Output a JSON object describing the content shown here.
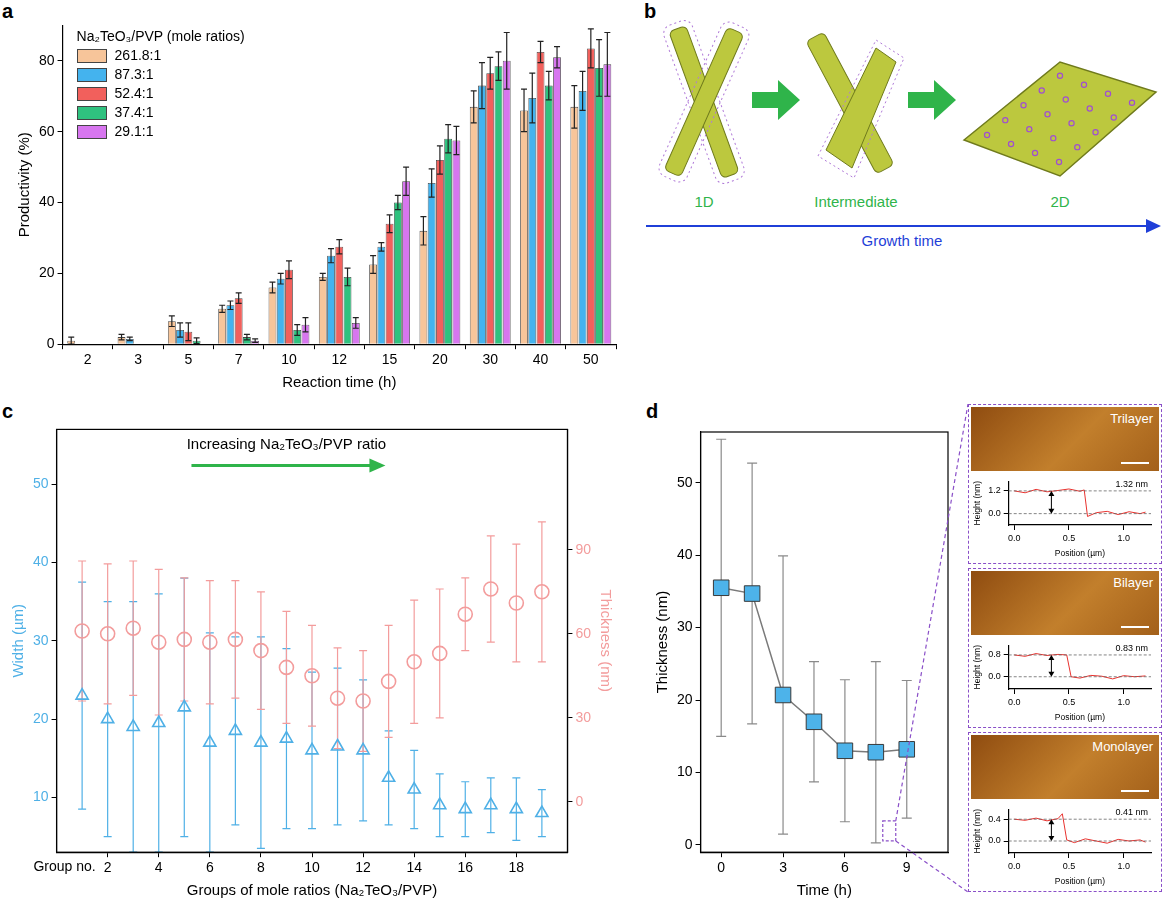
{
  "chart_data": [
    {
      "panel": "a",
      "type": "bar",
      "x_label": "Reaction time (h)",
      "y_label": "Productivity (%)",
      "categories": [
        "2",
        "3",
        "5",
        "7",
        "10",
        "12",
        "15",
        "20",
        "30",
        "40",
        "50"
      ],
      "legend_title": "Na₂TeO₃/PVP (mole ratios)",
      "legend": "top-left",
      "grid": false,
      "ylim": [
        0,
        90
      ],
      "yticks": [
        0,
        20,
        40,
        60,
        80
      ],
      "series": [
        {
          "name": "261.8:1",
          "color": "#f7c59a",
          "values": [
            1,
            2,
            6.5,
            10,
            16,
            19,
            22.5,
            32,
            67,
            66,
            67
          ],
          "errors": [
            1,
            0.8,
            1.5,
            1,
            1.5,
            1,
            2.5,
            4,
            4.5,
            6,
            6
          ]
        },
        {
          "name": "87.3:1",
          "color": "#44b3ee",
          "values": [
            0,
            1.5,
            4,
            11,
            18.5,
            25,
            27.5,
            45.5,
            73,
            69.5,
            71.5
          ],
          "errors": [
            0,
            0.5,
            2,
            1.2,
            1.5,
            2,
            1.2,
            4,
            6.5,
            7,
            5.5
          ]
        },
        {
          "name": "52.4:1",
          "color": "#f2605c",
          "values": [
            0,
            0,
            3.5,
            13,
            21,
            27.5,
            34,
            52,
            76.5,
            82.5,
            83.5
          ],
          "errors": [
            0,
            0,
            2.5,
            1.5,
            2.5,
            2,
            2.5,
            4,
            4.5,
            3,
            5.5
          ]
        },
        {
          "name": "37.4:1",
          "color": "#2fc27f",
          "values": [
            0,
            0,
            1,
            2,
            4,
            19,
            40,
            58,
            78.5,
            73,
            78
          ],
          "errors": [
            0,
            0,
            0.8,
            0.8,
            1.5,
            2.5,
            2,
            4,
            4,
            4,
            8
          ]
        },
        {
          "name": "29.1:1",
          "color": "#d776ef",
          "values": [
            0,
            0,
            0,
            1,
            5.5,
            6,
            46,
            57.5,
            80,
            81,
            79
          ],
          "errors": [
            0,
            0,
            0,
            0.5,
            2,
            1.5,
            4,
            4,
            8,
            3,
            9
          ]
        }
      ]
    },
    {
      "panel": "c",
      "type": "scatter",
      "x_label": "Groups of mole ratios (Na₂TeO₃/PVP)",
      "x_ticks_title": "Group no.",
      "annotation": "Increasing Na₂TeO₃/PVP ratio",
      "y_label": "Width (µm)",
      "y2_label": "Thickness (nm)",
      "grid": false,
      "x": [
        1,
        2,
        3,
        4,
        5,
        6,
        7,
        8,
        9,
        10,
        11,
        12,
        13,
        14,
        15,
        16,
        17,
        18,
        19
      ],
      "xlim": [
        0,
        20
      ],
      "xticks": [
        2,
        4,
        6,
        8,
        10,
        12,
        14,
        16,
        18
      ],
      "ylim": [
        3,
        57
      ],
      "yticks": [
        10,
        20,
        30,
        40,
        50
      ],
      "y2lim": [
        -18,
        133
      ],
      "y2ticks": [
        0,
        30,
        60,
        90
      ],
      "series": [
        {
          "color": "#4fb0e6",
          "marker": "triangle",
          "values": [
            23,
            20,
            19,
            19.5,
            21.5,
            17,
            18.5,
            17,
            17.5,
            16,
            16.5,
            16,
            12.5,
            11,
            9,
            8.5,
            9,
            8.5,
            8
          ],
          "errors": [
            14.5,
            15,
            16,
            16.5,
            16.5,
            14,
            12,
            13.5,
            11.5,
            10,
            10,
            9,
            6,
            5,
            4,
            3.5,
            3.5,
            4,
            3
          ]
        },
        {
          "color": "#f39c9c",
          "marker": "circle",
          "axis": "y2",
          "values": [
            61,
            60,
            62,
            57,
            58,
            57,
            58,
            54,
            48,
            45,
            37,
            36,
            43,
            50,
            53,
            67,
            76,
            71,
            75
          ],
          "errors": [
            25,
            25,
            24,
            26,
            22,
            22,
            21,
            21,
            20,
            18,
            18,
            18,
            20,
            22,
            23,
            13,
            19,
            21,
            25
          ]
        }
      ]
    },
    {
      "panel": "d",
      "type": "line",
      "x_label": "Time (h)",
      "y_label": "Thickness (nm)",
      "grid": false,
      "color": "#4db3ea",
      "marker": "square",
      "line_style": "solid",
      "x": [
        0,
        1.5,
        3,
        4.5,
        6,
        7.5,
        9
      ],
      "values": [
        35.5,
        34.7,
        20.7,
        17,
        13,
        12.8,
        13.2
      ],
      "errors": [
        20.5,
        18,
        19.2,
        8.3,
        9.8,
        12.5,
        9.5
      ],
      "xlim": [
        -1,
        11
      ],
      "xticks": [
        0,
        3,
        6,
        9
      ],
      "ylim": [
        -1,
        57
      ],
      "yticks": [
        0,
        10,
        20,
        30,
        40,
        50
      ],
      "insets": [
        {
          "type": "line",
          "label": "Trilayer",
          "step_label": "1.32 nm",
          "x_label": "Position (µm)",
          "y_label": "Height (nm)",
          "color": "#e8322e",
          "x": [
            0,
            0.1,
            0.2,
            0.3,
            0.4,
            0.5,
            0.6,
            0.64,
            0.67,
            0.75,
            0.85,
            0.95,
            1.05,
            1.15,
            1.2
          ],
          "values": [
            1.2,
            1.1,
            1.28,
            1.15,
            1.22,
            1.3,
            1.18,
            1.25,
            -0.15,
            0.05,
            0.12,
            -0.05,
            0.1,
            0,
            0.08
          ],
          "xlim": [
            -0.05,
            1.25
          ],
          "xticks": [
            {
              "value": 0,
              "label": "0.0"
            },
            {
              "value": 0.5,
              "label": "0.5"
            },
            {
              "value": 1,
              "label": "1.0"
            }
          ],
          "ylim": [
            -0.6,
            1.7
          ],
          "yticks": [
            {
              "value": 0,
              "label": "0.0"
            },
            1.2
          ]
        },
        {
          "type": "line",
          "label": "Bilayer",
          "step_label": "0.83 nm",
          "x_label": "Position (µm)",
          "y_label": "Height (nm)",
          "color": "#e8322e",
          "x": [
            0,
            0.1,
            0.2,
            0.3,
            0.4,
            0.48,
            0.52,
            0.6,
            0.7,
            0.8,
            0.9,
            1,
            1.1,
            1.2
          ],
          "values": [
            0.8,
            0.75,
            0.85,
            0.78,
            0.82,
            0.8,
            0,
            -0.05,
            0.05,
            0.02,
            -0.08,
            0.04,
            0,
            0.03
          ],
          "xlim": [
            -0.05,
            1.25
          ],
          "xticks": [
            {
              "value": 0,
              "label": "0.0"
            },
            {
              "value": 0.5,
              "label": "0.5"
            },
            {
              "value": 1,
              "label": "1.0"
            }
          ],
          "ylim": [
            -0.45,
            1.15
          ],
          "yticks": [
            {
              "value": 0,
              "label": "0.0"
            },
            0.8
          ]
        },
        {
          "type": "line",
          "label": "Monolayer",
          "step_label": "0.41 nm",
          "x_label": "Position (µm)",
          "y_label": "Height (nm)",
          "color": "#e8322e",
          "x": [
            0,
            0.1,
            0.2,
            0.3,
            0.4,
            0.44,
            0.48,
            0.55,
            0.65,
            0.75,
            0.85,
            0.95,
            1.05,
            1.15,
            1.2
          ],
          "values": [
            0.4,
            0.38,
            0.42,
            0.37,
            0.41,
            0.5,
            0.02,
            -0.03,
            0.04,
            0,
            -0.04,
            0.03,
            0,
            0.02,
            -0.02
          ],
          "xlim": [
            -0.05,
            1.25
          ],
          "xticks": [
            {
              "value": 0,
              "label": "0.0"
            },
            {
              "value": 0.5,
              "label": "0.5"
            },
            {
              "value": 1,
              "label": "1.0"
            }
          ],
          "ylim": [
            -0.22,
            0.58
          ],
          "yticks": [
            {
              "value": 0,
              "label": "0.0"
            },
            0.4
          ]
        }
      ]
    }
  ],
  "diagram": {
    "panel": "b",
    "stages": [
      "1D",
      "Intermediate",
      "2D"
    ],
    "axis_label": "Growth time"
  }
}
